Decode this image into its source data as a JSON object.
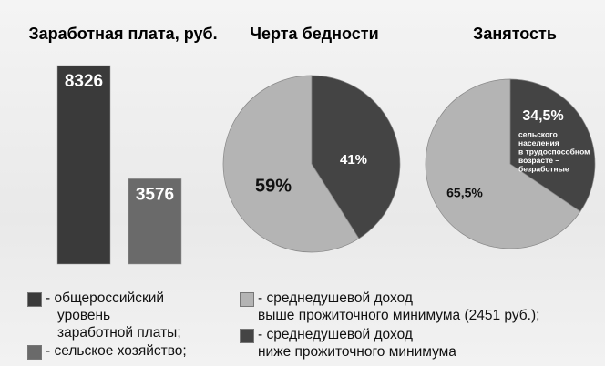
{
  "chart_data": [
    {
      "type": "bar",
      "title": "Заработная плата, руб.",
      "series": [
        {
          "name": "- общероссийский\nуровень\nзаработной платы;",
          "color": "#3a3a3a",
          "values": [
            8326
          ]
        },
        {
          "name": "- сельское хозяйство;",
          "color": "#6a6a6a",
          "values": [
            3576
          ]
        }
      ]
    },
    {
      "type": "pie",
      "title": "Черта бедности",
      "categories": [
        "- среднедушевой доход\nвыше прожиточного минимума (2451 руб.);",
        "- среднедушевой доход\nниже прожиточного минимума"
      ],
      "values": [
        59,
        41
      ],
      "value_labels": [
        "59%",
        "41%"
      ],
      "colors": [
        "#b4b4b4",
        "#444444"
      ]
    },
    {
      "type": "pie",
      "title": "Занятость",
      "values": [
        65.5,
        34.5
      ],
      "value_labels": [
        "65,5%",
        "34,5%"
      ],
      "colors": [
        "#b4b4b4",
        "#444444"
      ],
      "annotation": [
        "сельского",
        "населения",
        "в трудоспособном",
        "возрасте –",
        "безработные"
      ]
    }
  ]
}
